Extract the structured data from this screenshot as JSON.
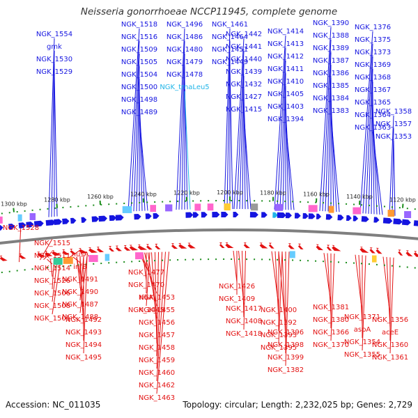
{
  "title": "Neisseria gonorrhoeae NCCP11945, complete genome",
  "footer": {
    "accession": "Accession: NC_011035",
    "summary": "Topology: circular; Length: 2,232,025 bp; Genes: 2,729"
  },
  "colors": {
    "forward": "#1515e0",
    "reverse": "#e31212",
    "rna": "#21b5e8",
    "backbone": "#7f7f7f",
    "tick_mark": "#1a8c1a"
  },
  "ticks": [
    {
      "label": "1300 kbp"
    },
    {
      "label": "1280 kbp"
    },
    {
      "label": "1260 kbp"
    },
    {
      "label": "1240 kbp"
    },
    {
      "label": "1220 kbp"
    },
    {
      "label": "1200 kbp"
    },
    {
      "label": "1180 kbp"
    },
    {
      "label": "1160 kbp"
    },
    {
      "label": "1140 kbp"
    },
    {
      "label": "1120 kbp"
    }
  ],
  "forward_genes": [
    {
      "label": "NGK_1554"
    },
    {
      "label": "gmk"
    },
    {
      "label": "NGK_1530"
    },
    {
      "label": "NGK_1529"
    },
    {
      "label": "NGK_1518"
    },
    {
      "label": "NGK_1516"
    },
    {
      "label": "NGK_1509"
    },
    {
      "label": "NGK_1505"
    },
    {
      "label": "NGK_1504"
    },
    {
      "label": "NGK_1500"
    },
    {
      "label": "NGK_1498"
    },
    {
      "label": "NGK_1489"
    },
    {
      "label": "NGK_1496"
    },
    {
      "label": "NGK_1486"
    },
    {
      "label": "NGK_1480"
    },
    {
      "label": "NGK_1479"
    },
    {
      "label": "NGK_1478"
    },
    {
      "label": "NGK_trnaLeu5",
      "rna": true
    },
    {
      "label": "NGK_1461"
    },
    {
      "label": "NGK_1464"
    },
    {
      "label": "NGK_1451"
    },
    {
      "label": "NGK_1449"
    },
    {
      "label": "NGK_1442"
    },
    {
      "label": "NGK_1441"
    },
    {
      "label": "NGK_1440"
    },
    {
      "label": "NGK_1439"
    },
    {
      "label": "NGK_1432"
    },
    {
      "label": "NGK_1427"
    },
    {
      "label": "NGK_1415"
    },
    {
      "label": "NGK_1414"
    },
    {
      "label": "NGK_1413"
    },
    {
      "label": "NGK_1412"
    },
    {
      "label": "NGK_1411"
    },
    {
      "label": "NGK_1410"
    },
    {
      "label": "NGK_1405"
    },
    {
      "label": "NGK_1403"
    },
    {
      "label": "NGK_1394"
    },
    {
      "label": "NGK_1390"
    },
    {
      "label": "NGK_1388"
    },
    {
      "label": "NGK_1389"
    },
    {
      "label": "NGK_1387"
    },
    {
      "label": "NGK_1386"
    },
    {
      "label": "NGK_1385"
    },
    {
      "label": "NGK_1384"
    },
    {
      "label": "NGK_1383"
    },
    {
      "label": "NGK_1376"
    },
    {
      "label": "NGK_1375"
    },
    {
      "label": "NGK_1373"
    },
    {
      "label": "NGK_1369"
    },
    {
      "label": "NGK_1368"
    },
    {
      "label": "NGK_1367"
    },
    {
      "label": "NGK_1365"
    },
    {
      "label": "NGK_1364"
    },
    {
      "label": "NGK_1363"
    },
    {
      "label": "NGK_1358"
    },
    {
      "label": "NGK_1357"
    },
    {
      "label": "NGK_1353"
    }
  ],
  "reverse_genes": [
    {
      "label": "NGK_1528"
    },
    {
      "label": "NGK_1515"
    },
    {
      "label": "NGK_1511"
    },
    {
      "label": "NGK_1514"
    },
    {
      "label": "NGK_1526"
    },
    {
      "label": "NGK_1506"
    },
    {
      "label": "NGK_1508"
    },
    {
      "label": "NGK_1501"
    },
    {
      "label": "nusA"
    },
    {
      "label": "infB"
    },
    {
      "label": "NGK_1491"
    },
    {
      "label": "NGK_1490"
    },
    {
      "label": "NGK_1487"
    },
    {
      "label": "NGK_1488"
    },
    {
      "label": "NGK_1492"
    },
    {
      "label": "NGK_1493"
    },
    {
      "label": "NGK_1494"
    },
    {
      "label": "NGK_1495"
    },
    {
      "label": "NGK_1477"
    },
    {
      "label": "NGK_1470"
    },
    {
      "label": "ribA"
    },
    {
      "label": "NGK_1445"
    },
    {
      "label": "NGK_1453"
    },
    {
      "label": "NGK_1455"
    },
    {
      "label": "NGK_1456"
    },
    {
      "label": "NGK_1457"
    },
    {
      "label": "NGK_1458"
    },
    {
      "label": "NGK_1459"
    },
    {
      "label": "NGK_1460"
    },
    {
      "label": "NGK_1462"
    },
    {
      "label": "NGK_1463"
    },
    {
      "label": "NGK_1426"
    },
    {
      "label": "NGK_1409"
    },
    {
      "label": "NGK_1417"
    },
    {
      "label": "NGK_1408"
    },
    {
      "label": "NGK_1418"
    },
    {
      "label": "NGK_1400"
    },
    {
      "label": "NGK_1392"
    },
    {
      "label": "NGK_1393"
    },
    {
      "label": "NGK_1395"
    },
    {
      "label": "NGK_1396"
    },
    {
      "label": "NGK_1398"
    },
    {
      "label": "NGK_1399"
    },
    {
      "label": "NGK_1382"
    },
    {
      "label": "NGK_1381"
    },
    {
      "label": "NGK_1380"
    },
    {
      "label": "NGK_1366"
    },
    {
      "label": "NGK_1370"
    },
    {
      "label": "NGK_1371"
    },
    {
      "label": "aspA"
    },
    {
      "label": "NGK_1354"
    },
    {
      "label": "NGK_1355"
    },
    {
      "label": "NGK_1356"
    },
    {
      "label": "aceE"
    },
    {
      "label": "NGK_1360"
    },
    {
      "label": "NGK_1361"
    }
  ]
}
